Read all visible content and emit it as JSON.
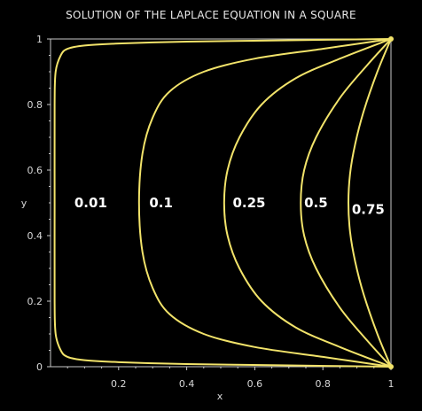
{
  "chart_data": {
    "type": "line",
    "title": "SOLUTION OF THE LAPLACE EQUATION IN A SQUARE",
    "xlabel": "x",
    "ylabel": "y",
    "xlim": [
      0,
      1
    ],
    "ylim": [
      0,
      1
    ],
    "grid": false,
    "legend": "none",
    "line_color": "#f2e36a",
    "background_color": "#000000",
    "x_tick_labels": [
      "0.2",
      "0.4",
      "0.6",
      "0.8",
      "1"
    ],
    "x_tick_values": [
      0.2,
      0.4,
      0.6,
      0.8,
      1.0
    ],
    "y_tick_labels": [
      "0",
      "0.2",
      "0.4",
      "0.6",
      "0.8",
      "1"
    ],
    "y_tick_values": [
      0,
      0.2,
      0.4,
      0.6,
      0.8,
      1.0
    ],
    "series": [
      {
        "label": "0.01",
        "level": 0.01,
        "label_at": [
          0.07,
          0.5
        ],
        "x": [
          1.0,
          0.7,
          0.4,
          0.2,
          0.1,
          0.05,
          0.03,
          0.015,
          0.012,
          0.012,
          0.012,
          0.015,
          0.03,
          0.05,
          0.1,
          0.2,
          0.4,
          0.7,
          1.0
        ],
        "y": [
          0.0,
          0.004,
          0.008,
          0.014,
          0.02,
          0.03,
          0.05,
          0.1,
          0.2,
          0.5,
          0.8,
          0.9,
          0.95,
          0.97,
          0.98,
          0.986,
          0.992,
          0.996,
          1.0
        ]
      },
      {
        "label": "0.1",
        "level": 0.1,
        "label_at": [
          0.29,
          0.5
        ],
        "x": [
          1.0,
          0.8,
          0.6,
          0.45,
          0.35,
          0.3,
          0.27,
          0.26,
          0.27,
          0.3,
          0.35,
          0.45,
          0.6,
          0.8,
          1.0
        ],
        "y": [
          0.0,
          0.03,
          0.06,
          0.1,
          0.16,
          0.24,
          0.35,
          0.5,
          0.65,
          0.76,
          0.84,
          0.9,
          0.94,
          0.97,
          1.0
        ]
      },
      {
        "label": "0.25",
        "level": 0.25,
        "label_at": [
          0.535,
          0.5
        ],
        "x": [
          1.0,
          0.85,
          0.72,
          0.62,
          0.555,
          0.52,
          0.51,
          0.52,
          0.555,
          0.62,
          0.72,
          0.85,
          1.0
        ],
        "y": [
          0.0,
          0.06,
          0.12,
          0.2,
          0.3,
          0.4,
          0.5,
          0.6,
          0.7,
          0.8,
          0.88,
          0.94,
          1.0
        ]
      },
      {
        "label": "0.5",
        "level": 0.5,
        "label_at": [
          0.745,
          0.5
        ],
        "x": [
          1.0,
          0.93,
          0.85,
          0.78,
          0.745,
          0.735,
          0.745,
          0.78,
          0.85,
          0.93,
          1.0
        ],
        "y": [
          0.0,
          0.08,
          0.18,
          0.3,
          0.4,
          0.5,
          0.6,
          0.7,
          0.82,
          0.92,
          1.0
        ]
      },
      {
        "label": "0.75",
        "level": 0.75,
        "label_at": [
          0.885,
          0.48
        ],
        "x": [
          1.0,
          0.96,
          0.92,
          0.895,
          0.88,
          0.875,
          0.88,
          0.895,
          0.92,
          0.96,
          1.0
        ],
        "y": [
          0.0,
          0.1,
          0.22,
          0.32,
          0.41,
          0.5,
          0.59,
          0.68,
          0.78,
          0.9,
          1.0
        ]
      }
    ]
  }
}
